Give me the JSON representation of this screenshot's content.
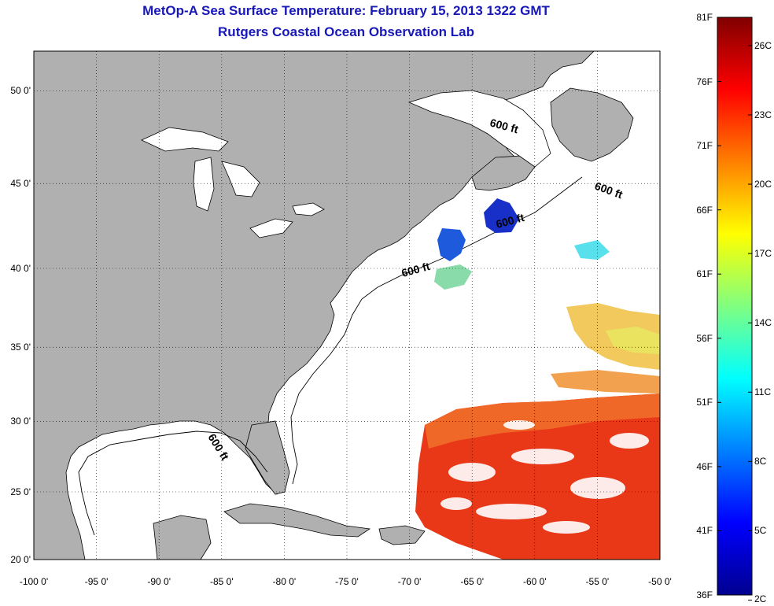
{
  "title": "MetOp-A Sea Surface Temperature:  February 15, 2013 1322 GMT",
  "subtitle": "Rutgers Coastal Ocean Observation Lab",
  "map": {
    "lon_ticks": [
      "-100 0'",
      "-95 0'",
      "-90 0'",
      "-85 0'",
      "-80 0'",
      "-75 0'",
      "-70 0'",
      "-65 0'",
      "-60 0'",
      "-55 0'",
      "-50 0'"
    ],
    "lat_ticks": [
      "50 0'",
      "45 0'",
      "40 0'",
      "35 0'",
      "30 0'",
      "25 0'",
      "20 0'"
    ],
    "lon_range": [
      -100,
      -50
    ],
    "lat_range": [
      20,
      52
    ],
    "contour_labels": [
      "600 ft",
      "600 ft",
      "600 ft",
      "600 ft",
      "600 ft"
    ],
    "land_color": "#b0b0b0",
    "water_color": "#ffffff"
  },
  "colorbar": {
    "f_labels": [
      "81F",
      "76F",
      "71F",
      "66F",
      "61F",
      "56F",
      "51F",
      "46F",
      "41F",
      "36F"
    ],
    "c_labels": [
      "26C",
      "23C",
      "20C",
      "17C",
      "14C",
      "11C",
      "8C",
      "5C",
      "2C"
    ],
    "colormap": "jet",
    "range_f": [
      36,
      81
    ]
  }
}
